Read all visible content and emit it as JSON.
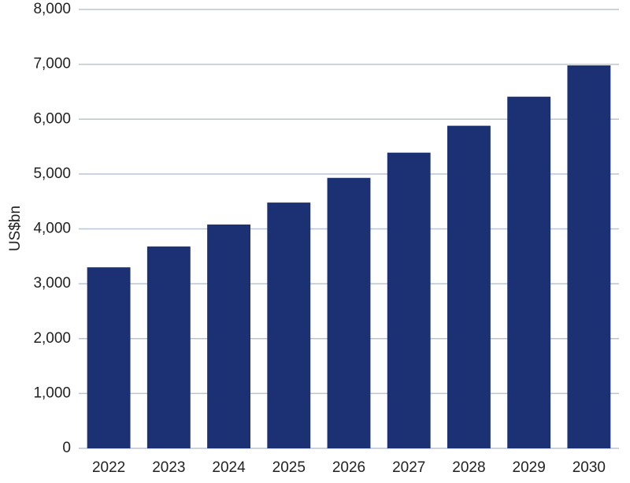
{
  "chart_data": {
    "type": "bar",
    "y_label": "US$bn",
    "categories": [
      "2022",
      "2023",
      "2024",
      "2025",
      "2026",
      "2027",
      "2028",
      "2029",
      "2030"
    ],
    "values": [
      3300,
      3680,
      4080,
      4480,
      4930,
      5390,
      5880,
      6410,
      6980
    ],
    "color": "#1b3173",
    "ylim": [
      0,
      8000
    ],
    "yticks": [
      0,
      {
        "value": 1000,
        "label": "1,000"
      },
      {
        "value": 2000,
        "label": "2,000"
      },
      {
        "value": 3000,
        "label": "3,000"
      },
      {
        "value": 4000,
        "label": "4,000"
      },
      {
        "value": 5000,
        "label": "5,000"
      },
      {
        "value": 6000,
        "label": "6,000"
      },
      {
        "value": 7000,
        "label": "7,000"
      },
      {
        "value": 8000,
        "label": "8,000"
      }
    ],
    "grid": true
  }
}
